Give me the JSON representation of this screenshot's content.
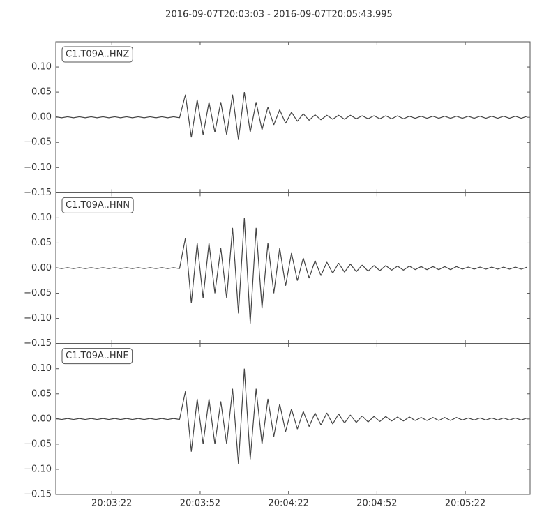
{
  "chart_data": {
    "type": "line",
    "facet": true,
    "title": "2016-09-07T20:03:03  -  2016-09-07T20:05:43.995",
    "x": [
      0,
      2,
      4,
      6,
      8,
      10,
      12,
      14,
      16,
      18,
      20,
      22,
      24,
      26,
      28,
      30,
      32,
      34,
      36,
      38,
      40,
      42,
      44,
      46,
      48,
      50,
      52,
      54,
      56,
      58,
      60,
      62,
      64,
      66,
      68,
      70,
      72,
      74,
      76,
      78,
      80,
      82,
      84,
      86,
      88,
      90,
      92,
      94,
      96,
      98,
      100,
      102,
      104,
      106,
      108,
      110,
      112,
      114,
      116,
      118,
      120,
      122,
      124,
      126,
      128,
      130,
      132,
      134,
      136,
      138,
      140,
      142,
      144,
      146,
      148,
      150,
      152,
      154,
      156,
      158,
      160
    ],
    "xlim": [
      0,
      160.995
    ],
    "xticks": [
      {
        "value": 19,
        "label": "20:03:22"
      },
      {
        "value": 49,
        "label": "20:03:52"
      },
      {
        "value": 79,
        "label": "20:04:22"
      },
      {
        "value": 109,
        "label": "20:04:52"
      },
      {
        "value": 139,
        "label": "20:05:22"
      }
    ],
    "ylim": [
      -0.15,
      0.15
    ],
    "yticks": [
      {
        "value": -0.15,
        "label": "−0.15"
      },
      {
        "value": -0.1,
        "label": "−0.10"
      },
      {
        "value": -0.05,
        "label": "−0.05"
      },
      {
        "value": 0,
        "label": "0.00"
      },
      {
        "value": 0.05,
        "label": "0.05"
      },
      {
        "value": 0.1,
        "label": "0.10"
      }
    ],
    "series": [
      {
        "name": "C1.T09A..HNZ",
        "color": "#444444",
        "values": [
          0.001,
          -0.001,
          0.001,
          -0.001,
          0.001,
          -0.001,
          0.001,
          -0.001,
          0.001,
          -0.001,
          0.001,
          -0.001,
          0.001,
          -0.001,
          0.001,
          -0.001,
          0.001,
          -0.001,
          0.001,
          -0.001,
          0.001,
          -0.001,
          0.045,
          -0.04,
          0.035,
          -0.035,
          0.03,
          -0.03,
          0.03,
          -0.035,
          0.045,
          -0.045,
          0.05,
          -0.03,
          0.03,
          -0.025,
          0.02,
          -0.015,
          0.015,
          -0.012,
          0.01,
          -0.008,
          0.007,
          -0.006,
          0.005,
          -0.005,
          0.004,
          -0.004,
          0.004,
          -0.004,
          0.004,
          -0.003,
          0.003,
          -0.003,
          0.003,
          -0.003,
          0.003,
          -0.003,
          0.003,
          -0.003,
          0.002,
          -0.002,
          0.002,
          -0.002,
          0.002,
          -0.002,
          0.002,
          -0.002,
          0.002,
          -0.002,
          0.002,
          -0.002,
          0.002,
          -0.002,
          0.002,
          -0.002,
          0.002,
          -0.002,
          0.002,
          -0.002,
          0.002
        ]
      },
      {
        "name": "C1.T09A..HNN",
        "color": "#444444",
        "values": [
          0.001,
          -0.001,
          0.001,
          -0.001,
          0.001,
          -0.001,
          0.001,
          -0.001,
          0.001,
          -0.001,
          0.001,
          -0.001,
          0.001,
          -0.001,
          0.001,
          -0.001,
          0.001,
          -0.001,
          0.001,
          -0.001,
          0.001,
          -0.001,
          0.06,
          -0.07,
          0.05,
          -0.06,
          0.05,
          -0.05,
          0.04,
          -0.06,
          0.08,
          -0.09,
          0.1,
          -0.11,
          0.08,
          -0.08,
          0.05,
          -0.05,
          0.04,
          -0.035,
          0.03,
          -0.025,
          0.02,
          -0.02,
          0.015,
          -0.015,
          0.012,
          -0.01,
          0.01,
          -0.008,
          0.008,
          -0.007,
          0.006,
          -0.006,
          0.005,
          -0.005,
          0.005,
          -0.004,
          0.004,
          -0.004,
          0.004,
          -0.003,
          0.003,
          -0.003,
          0.003,
          -0.003,
          0.003,
          -0.003,
          0.003,
          -0.002,
          0.002,
          -0.002,
          0.002,
          -0.002,
          0.002,
          -0.002,
          0.002,
          -0.002,
          0.002,
          -0.002,
          0.002
        ]
      },
      {
        "name": "C1.T09A..HNE",
        "color": "#444444",
        "values": [
          0.001,
          -0.001,
          0.001,
          -0.001,
          0.001,
          -0.001,
          0.001,
          -0.001,
          0.001,
          -0.001,
          0.001,
          -0.001,
          0.001,
          -0.001,
          0.001,
          -0.001,
          0.001,
          -0.001,
          0.001,
          -0.001,
          0.001,
          -0.001,
          0.055,
          -0.065,
          0.04,
          -0.05,
          0.04,
          -0.05,
          0.035,
          -0.05,
          0.06,
          -0.09,
          0.1,
          -0.08,
          0.06,
          -0.05,
          0.04,
          -0.035,
          0.03,
          -0.025,
          0.02,
          -0.02,
          0.015,
          -0.015,
          0.012,
          -0.012,
          0.012,
          -0.01,
          0.01,
          -0.008,
          0.008,
          -0.007,
          0.006,
          -0.006,
          0.005,
          -0.005,
          0.005,
          -0.004,
          0.004,
          -0.004,
          0.004,
          -0.003,
          0.003,
          -0.003,
          0.003,
          -0.003,
          0.003,
          -0.003,
          0.003,
          -0.002,
          0.002,
          -0.002,
          0.002,
          -0.002,
          0.002,
          -0.002,
          0.002,
          -0.002,
          0.002,
          -0.002,
          0.002
        ]
      }
    ]
  }
}
